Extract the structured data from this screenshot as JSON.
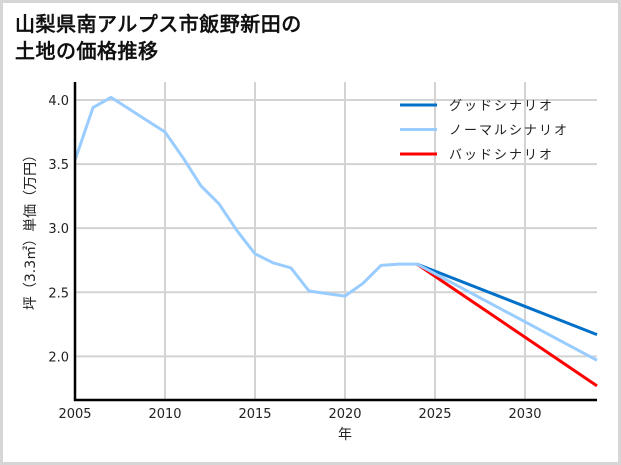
{
  "title": {
    "line1": "山梨県南アルプス市飯野新田の",
    "line2": "土地の価格推移"
  },
  "chart_data": {
    "type": "line",
    "title": "山梨県南アルプス市飯野新田の土地の価格推移",
    "xlabel": "年",
    "ylabel": "坪（3.3㎡）単価（万円）",
    "xlim": [
      2005,
      2034
    ],
    "ylim": [
      1.66,
      4.14
    ],
    "xticks": [
      2005,
      2010,
      2015,
      2020,
      2025,
      2030
    ],
    "yticks": [
      2.0,
      2.5,
      3.0,
      3.5,
      4.0
    ],
    "ytick_labels": [
      "2.0",
      "2.5",
      "3.0",
      "3.5",
      "4.0"
    ],
    "grid": true,
    "legend_position": "upper right",
    "series": [
      {
        "name": "グッドシナリオ",
        "color": "#0070C8",
        "x": [
          2024,
          2034
        ],
        "values": [
          2.72,
          2.17
        ]
      },
      {
        "name": "ノーマルシナリオ",
        "color": "#99CCFF",
        "x": [
          2005,
          2006,
          2007,
          2008,
          2009,
          2010,
          2011,
          2012,
          2013,
          2014,
          2015,
          2016,
          2017,
          2018,
          2019,
          2020,
          2021,
          2022,
          2023,
          2024,
          2034
        ],
        "values": [
          3.53,
          3.94,
          4.02,
          3.93,
          3.84,
          3.75,
          3.55,
          3.33,
          3.19,
          2.98,
          2.8,
          2.73,
          2.69,
          2.51,
          2.49,
          2.47,
          2.57,
          2.71,
          2.72,
          2.72,
          1.97
        ]
      },
      {
        "name": "バッドシナリオ",
        "color": "#FF0000",
        "x": [
          2024,
          2034
        ],
        "values": [
          2.72,
          1.77
        ]
      }
    ]
  }
}
